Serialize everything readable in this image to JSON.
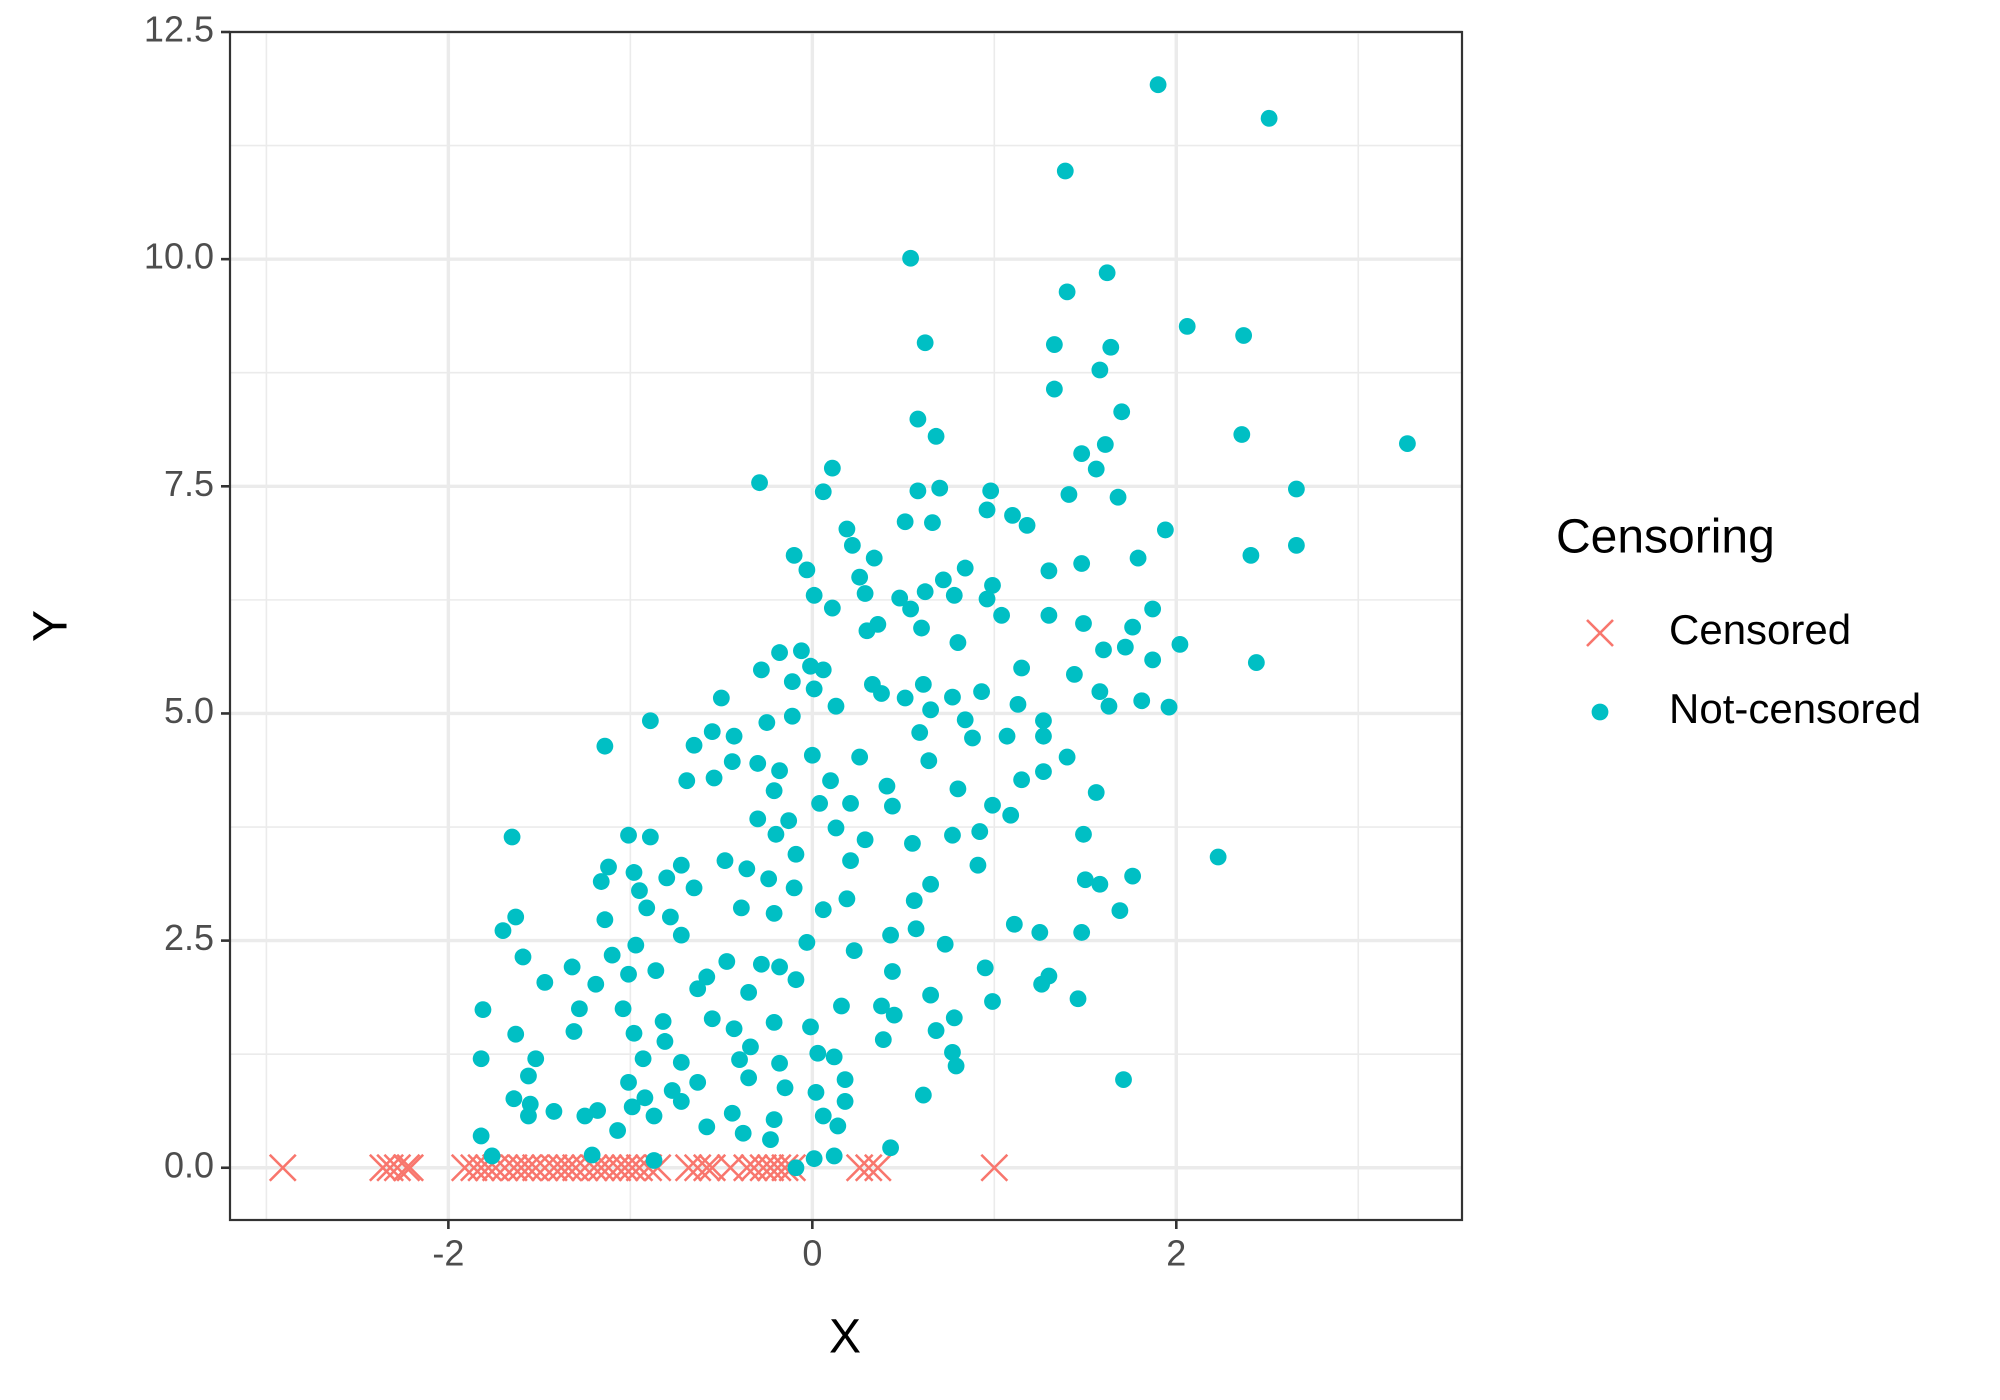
{
  "chart_data": {
    "type": "scatter",
    "x_label": "X",
    "y_label": "Y",
    "legend_title": "Censoring",
    "legend": "right",
    "grid": true,
    "xlim": [
      -3.2,
      3.57
    ],
    "ylim": [
      -0.575,
      12.5
    ],
    "xticks": [
      -2,
      0,
      2
    ],
    "yticks": [
      {
        "value": 0,
        "label": "0.0"
      },
      2.5,
      {
        "value": 5,
        "label": "5.0"
      },
      7.5,
      {
        "value": 10,
        "label": "10.0"
      },
      12.5
    ],
    "xminor": [
      -3,
      -1,
      1,
      3
    ],
    "yminor": [
      1.25,
      3.75,
      6.25,
      8.75,
      11.25
    ],
    "series": [
      {
        "name": "Censored",
        "color": "#f8766d",
        "marker": "x",
        "x": [
          -2.91,
          -2.36,
          -2.32,
          -2.28,
          -2.23,
          -2.21,
          -1.91,
          -1.86,
          -1.82,
          -1.78,
          -1.74,
          -1.69,
          -1.64,
          -1.6,
          -1.56,
          -1.52,
          -1.47,
          -1.42,
          -1.38,
          -1.34,
          -1.3,
          -1.25,
          -1.2,
          -1.16,
          -1.12,
          -1.07,
          -1.03,
          -0.99,
          -0.95,
          -0.9,
          -0.85,
          -0.68,
          -0.63,
          -0.58,
          -0.55,
          -0.45,
          -0.36,
          -0.32,
          -0.27,
          -0.23,
          -0.19,
          -0.15,
          -0.11,
          0.26,
          0.31,
          0.36,
          1.0
        ],
        "y": [
          0,
          0,
          0,
          0,
          0,
          0,
          0,
          0,
          0,
          0,
          0,
          0,
          0,
          0,
          0,
          0,
          0,
          0,
          0,
          0,
          0,
          0,
          0,
          0,
          0,
          0,
          0,
          0,
          0,
          0,
          0,
          0,
          0,
          0,
          0,
          0,
          0,
          0,
          0,
          0,
          0,
          0,
          0,
          0,
          0,
          0,
          0
        ]
      },
      {
        "name": "Not-censored",
        "color": "#00bfc4",
        "marker": "circle",
        "x": [
          1.9,
          2.51,
          1.39,
          0.54,
          1.62,
          1.4,
          2.06,
          2.37,
          0.62,
          1.33,
          1.64,
          1.58,
          1.7,
          1.33,
          0.58,
          0.68,
          2.36,
          3.27,
          1.61,
          1.48,
          1.56,
          0.11,
          -0.29,
          0.06,
          0.58,
          0.7,
          0.98,
          1.41,
          1.68,
          2.66,
          0.51,
          0.66,
          0.96,
          1.1,
          1.18,
          1.94,
          0.19,
          0.22,
          2.66,
          -0.1,
          0.34,
          1.48,
          1.79,
          2.41,
          -0.03,
          0.84,
          1.3,
          0.26,
          0.72,
          0.99,
          0.01,
          0.29,
          0.48,
          0.62,
          0.78,
          0.96,
          1.87,
          0.11,
          0.54,
          1.04,
          1.3,
          0.36,
          0.6,
          1.49,
          1.76,
          0.3,
          0.8,
          1.6,
          2.02,
          1.72,
          1.87,
          2.44,
          -0.18,
          -0.06,
          -0.28,
          -0.01,
          0.06,
          1.15,
          1.44,
          -0.11,
          0.33,
          0.61,
          0.01,
          0.38,
          0.77,
          0.93,
          1.58,
          -0.5,
          0.51,
          1.81,
          -0.25,
          -0.89,
          0.13,
          1.63,
          1.96,
          0.65,
          1.13,
          -0.11,
          0.84,
          1.27,
          -0.55,
          0.59,
          -0.43,
          -0.65,
          -1.14,
          0.88,
          1.07,
          1.27,
          0.0,
          0.26,
          0.64,
          1.4,
          -0.44,
          -0.3,
          -0.18,
          -0.54,
          -0.69,
          0.1,
          1.15,
          1.27,
          0.8,
          1.56,
          -0.21,
          0.41,
          0.04,
          0.21,
          0.99,
          0.44,
          1.09,
          -0.3,
          -0.13,
          1.49,
          -1.65,
          -1.01,
          -0.89,
          0.77,
          -0.2,
          0.13,
          0.29,
          0.55,
          0.92,
          -0.09,
          2.23,
          -1.12,
          -0.72,
          -0.48,
          -0.36,
          0.21,
          0.91,
          -0.98,
          -0.24,
          -1.16,
          -0.8,
          1.76,
          1.5,
          1.58,
          0.65,
          -0.95,
          -0.65,
          -0.1,
          0.19,
          0.56,
          -0.91,
          -0.39,
          1.69,
          -1.14,
          -1.63,
          -0.78,
          -0.21,
          0.06,
          1.11,
          1.25,
          -1.7,
          0.57,
          1.48,
          -0.72,
          0.43,
          -0.03,
          -0.97,
          0.73,
          0.23,
          -1.59,
          -1.1,
          -0.47,
          -0.28,
          -0.18,
          -1.32,
          0.95,
          -0.86,
          0.44,
          -1.01,
          -0.09,
          -0.58,
          1.3,
          -1.47,
          1.26,
          -1.19,
          -0.63,
          -0.35,
          0.65,
          1.46,
          0.99,
          0.16,
          0.38,
          -1.81,
          -1.28,
          -1.04,
          0.45,
          -0.55,
          0.78,
          -0.82,
          -0.21,
          0.68,
          -0.43,
          -1.31,
          -0.01,
          -1.63,
          -0.98,
          0.39,
          -0.81,
          -0.34,
          0.77,
          0.03,
          -1.52,
          -1.82,
          -0.93,
          -0.4,
          0.12,
          -0.72,
          -0.18,
          0.79,
          -1.56,
          -0.35,
          1.71,
          -1.01,
          -0.63,
          0.18,
          -0.77,
          -0.15,
          0.02,
          0.61,
          -1.64,
          -0.92,
          -0.72,
          -1.55,
          0.18,
          -0.99,
          -1.42,
          -1.18,
          -0.44,
          0.06,
          -1.56,
          -0.87,
          -0.21,
          -1.25,
          -0.58,
          -1.07,
          0.14,
          -0.38,
          -1.82,
          -0.23,
          0.43,
          -1.21,
          -1.76,
          0.12,
          0.01,
          -0.87,
          -0.09
        ],
        "y": [
          11.92,
          11.55,
          10.97,
          10.01,
          9.85,
          9.64,
          9.26,
          9.16,
          9.08,
          9.06,
          9.03,
          8.78,
          8.32,
          8.57,
          8.24,
          8.05,
          8.07,
          7.97,
          7.96,
          7.86,
          7.69,
          7.7,
          7.54,
          7.44,
          7.45,
          7.48,
          7.45,
          7.41,
          7.38,
          7.47,
          7.11,
          7.1,
          7.24,
          7.18,
          7.07,
          7.02,
          7.03,
          6.85,
          6.85,
          6.74,
          6.71,
          6.65,
          6.71,
          6.74,
          6.58,
          6.6,
          6.57,
          6.5,
          6.47,
          6.41,
          6.3,
          6.32,
          6.27,
          6.34,
          6.3,
          6.26,
          6.15,
          6.16,
          6.15,
          6.08,
          6.08,
          5.98,
          5.94,
          5.99,
          5.95,
          5.91,
          5.78,
          5.7,
          5.76,
          5.73,
          5.59,
          5.56,
          5.67,
          5.69,
          5.48,
          5.52,
          5.48,
          5.5,
          5.43,
          5.35,
          5.32,
          5.32,
          5.27,
          5.22,
          5.18,
          5.24,
          5.24,
          5.17,
          5.17,
          5.14,
          4.9,
          4.92,
          5.08,
          5.08,
          5.07,
          5.04,
          5.1,
          4.97,
          4.93,
          4.92,
          4.8,
          4.79,
          4.75,
          4.65,
          4.64,
          4.73,
          4.75,
          4.75,
          4.54,
          4.52,
          4.48,
          4.52,
          4.47,
          4.45,
          4.37,
          4.29,
          4.26,
          4.26,
          4.27,
          4.36,
          4.17,
          4.13,
          4.15,
          4.2,
          4.01,
          4.01,
          3.99,
          3.98,
          3.88,
          3.84,
          3.82,
          3.67,
          3.64,
          3.66,
          3.64,
          3.66,
          3.67,
          3.74,
          3.61,
          3.57,
          3.7,
          3.45,
          3.42,
          3.31,
          3.33,
          3.38,
          3.29,
          3.38,
          3.33,
          3.25,
          3.18,
          3.15,
          3.19,
          3.21,
          3.17,
          3.12,
          3.12,
          3.05,
          3.08,
          3.08,
          2.96,
          2.94,
          2.86,
          2.86,
          2.83,
          2.73,
          2.76,
          2.76,
          2.8,
          2.84,
          2.68,
          2.59,
          2.61,
          2.63,
          2.59,
          2.56,
          2.56,
          2.48,
          2.45,
          2.46,
          2.39,
          2.32,
          2.34,
          2.27,
          2.24,
          2.21,
          2.21,
          2.2,
          2.17,
          2.16,
          2.13,
          2.07,
          2.1,
          2.11,
          2.04,
          2.02,
          2.02,
          1.97,
          1.93,
          1.9,
          1.86,
          1.83,
          1.78,
          1.78,
          1.74,
          1.75,
          1.75,
          1.68,
          1.64,
          1.65,
          1.61,
          1.6,
          1.51,
          1.53,
          1.5,
          1.55,
          1.47,
          1.48,
          1.41,
          1.39,
          1.33,
          1.27,
          1.26,
          1.2,
          1.2,
          1.2,
          1.19,
          1.22,
          1.16,
          1.15,
          1.12,
          1.01,
          0.99,
          0.97,
          0.94,
          0.94,
          0.97,
          0.85,
          0.88,
          0.83,
          0.8,
          0.76,
          0.77,
          0.73,
          0.7,
          0.73,
          0.67,
          0.62,
          0.63,
          0.6,
          0.57,
          0.57,
          0.57,
          0.53,
          0.57,
          0.45,
          0.41,
          0.46,
          0.38,
          0.35,
          0.31,
          0.22,
          0.14,
          0.13,
          0.13,
          0.1,
          0.08,
          0.0
        ]
      }
    ]
  }
}
